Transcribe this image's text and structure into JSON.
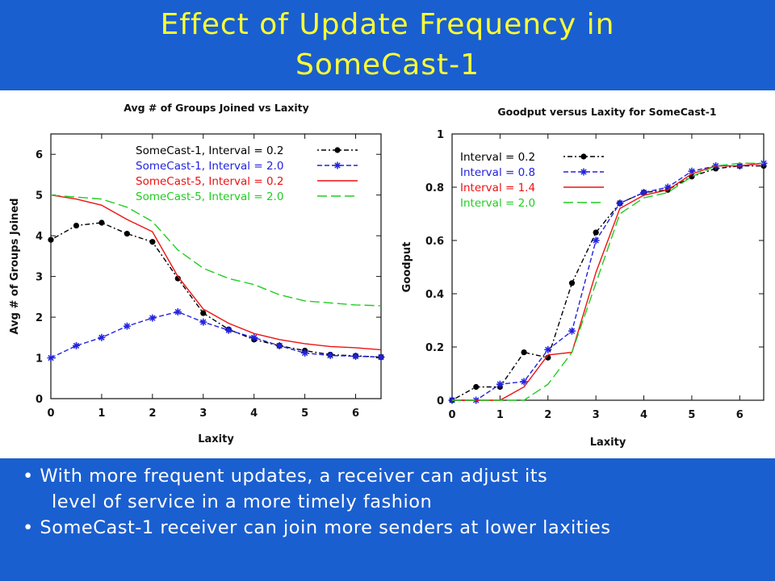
{
  "slide": {
    "title_line1": "Effect of Update Frequency in",
    "title_line2": "SomeCast-1",
    "bullets": [
      "• With more frequent updates, a receiver can adjust its",
      "level of service in a more timely fashion",
      "• SomeCast-1 receiver can join more senders at lower laxities"
    ]
  },
  "colors": {
    "background": "#1a5fd0",
    "title": "#ffff33",
    "text": "#ffffff"
  },
  "chart_data": [
    {
      "type": "line",
      "title": "Avg # of Groups Joined vs Laxity",
      "xlabel": "Laxity",
      "ylabel": "Avg # of Groups Joined",
      "xlim": [
        0,
        6.5
      ],
      "ylim": [
        0,
        6.5
      ],
      "xticks": [
        0,
        1,
        2,
        3,
        4,
        5,
        6
      ],
      "yticks": [
        0,
        1,
        2,
        3,
        4,
        5,
        6
      ],
      "grid": false,
      "legend_position": "top-right",
      "series": [
        {
          "name": "SomeCast-1, Interval = 0.2",
          "color": "#000000",
          "dash": "dot-dash",
          "marker": "dot",
          "x": [
            0,
            0.5,
            1,
            1.5,
            2,
            2.5,
            3,
            3.5,
            4,
            4.5,
            5,
            5.5,
            6,
            6.5
          ],
          "y": [
            3.9,
            4.25,
            4.32,
            4.05,
            3.85,
            2.95,
            2.1,
            1.7,
            1.45,
            1.3,
            1.18,
            1.08,
            1.05,
            1.02
          ]
        },
        {
          "name": "SomeCast-1, Interval = 2.0",
          "color": "#2222dd",
          "dash": "dash",
          "marker": "star",
          "x": [
            0,
            0.5,
            1,
            1.5,
            2,
            2.5,
            3,
            3.5,
            4,
            4.5,
            5,
            5.5,
            6,
            6.5
          ],
          "y": [
            1.0,
            1.3,
            1.5,
            1.78,
            1.98,
            2.13,
            1.88,
            1.68,
            1.5,
            1.3,
            1.12,
            1.06,
            1.04,
            1.02
          ]
        },
        {
          "name": "SomeCast-5, Interval = 0.2",
          "color": "#ee1111",
          "dash": "solid",
          "marker": "none",
          "x": [
            0,
            0.5,
            1,
            1.5,
            2,
            2.5,
            3,
            3.5,
            4,
            4.5,
            5,
            5.5,
            6,
            6.5
          ],
          "y": [
            5.0,
            4.9,
            4.75,
            4.4,
            4.1,
            3.0,
            2.2,
            1.85,
            1.6,
            1.45,
            1.35,
            1.28,
            1.25,
            1.2
          ]
        },
        {
          "name": "SomeCast-5, Interval = 2.0",
          "color": "#22cc22",
          "dash": "long-dash",
          "marker": "none",
          "x": [
            0,
            0.5,
            1,
            1.5,
            2,
            2.5,
            3,
            3.5,
            4,
            4.5,
            5,
            5.5,
            6,
            6.5
          ],
          "y": [
            5.0,
            4.95,
            4.9,
            4.7,
            4.35,
            3.65,
            3.2,
            2.95,
            2.8,
            2.55,
            2.4,
            2.35,
            2.3,
            2.28
          ]
        }
      ]
    },
    {
      "type": "line",
      "title": "Goodput versus Laxity for SomeCast-1",
      "xlabel": "Laxity",
      "ylabel": "Goodput",
      "xlim": [
        0,
        6.5
      ],
      "ylim": [
        0,
        1
      ],
      "xticks": [
        0,
        1,
        2,
        3,
        4,
        5,
        6
      ],
      "yticks": [
        0,
        0.2,
        0.4,
        0.6,
        0.8,
        1
      ],
      "grid": false,
      "legend_position": "top-left",
      "series": [
        {
          "name": "Interval = 0.2",
          "color": "#000000",
          "dash": "dot-dash",
          "marker": "dot",
          "x": [
            0,
            0.5,
            1,
            1.5,
            2,
            2.5,
            3,
            3.5,
            4,
            4.5,
            5,
            5.5,
            6,
            6.5
          ],
          "y": [
            0,
            0.05,
            0.05,
            0.18,
            0.16,
            0.44,
            0.63,
            0.74,
            0.78,
            0.79,
            0.84,
            0.87,
            0.88,
            0.88
          ]
        },
        {
          "name": "Interval = 0.8",
          "color": "#2222dd",
          "dash": "dash",
          "marker": "star",
          "x": [
            0,
            0.5,
            1,
            1.5,
            2,
            2.5,
            3,
            3.5,
            4,
            4.5,
            5,
            5.5,
            6,
            6.5
          ],
          "y": [
            0,
            0,
            0.06,
            0.07,
            0.19,
            0.26,
            0.6,
            0.74,
            0.78,
            0.8,
            0.86,
            0.88,
            0.88,
            0.89
          ]
        },
        {
          "name": "Interval = 1.4",
          "color": "#ee1111",
          "dash": "solid",
          "marker": "none",
          "x": [
            0,
            0.5,
            1,
            1.5,
            2,
            2.5,
            3,
            3.5,
            4,
            4.5,
            5,
            5.5,
            6,
            6.5
          ],
          "y": [
            0,
            0,
            0,
            0.05,
            0.17,
            0.18,
            0.48,
            0.72,
            0.77,
            0.79,
            0.85,
            0.88,
            0.88,
            0.89
          ]
        },
        {
          "name": "Interval = 2.0",
          "color": "#22cc22",
          "dash": "long-dash",
          "marker": "none",
          "x": [
            0,
            0.5,
            1,
            1.5,
            2,
            2.5,
            3,
            3.5,
            4,
            4.5,
            5,
            5.5,
            6,
            6.5
          ],
          "y": [
            0,
            0,
            0,
            0,
            0.06,
            0.18,
            0.44,
            0.7,
            0.76,
            0.78,
            0.84,
            0.88,
            0.89,
            0.89
          ]
        }
      ]
    }
  ]
}
